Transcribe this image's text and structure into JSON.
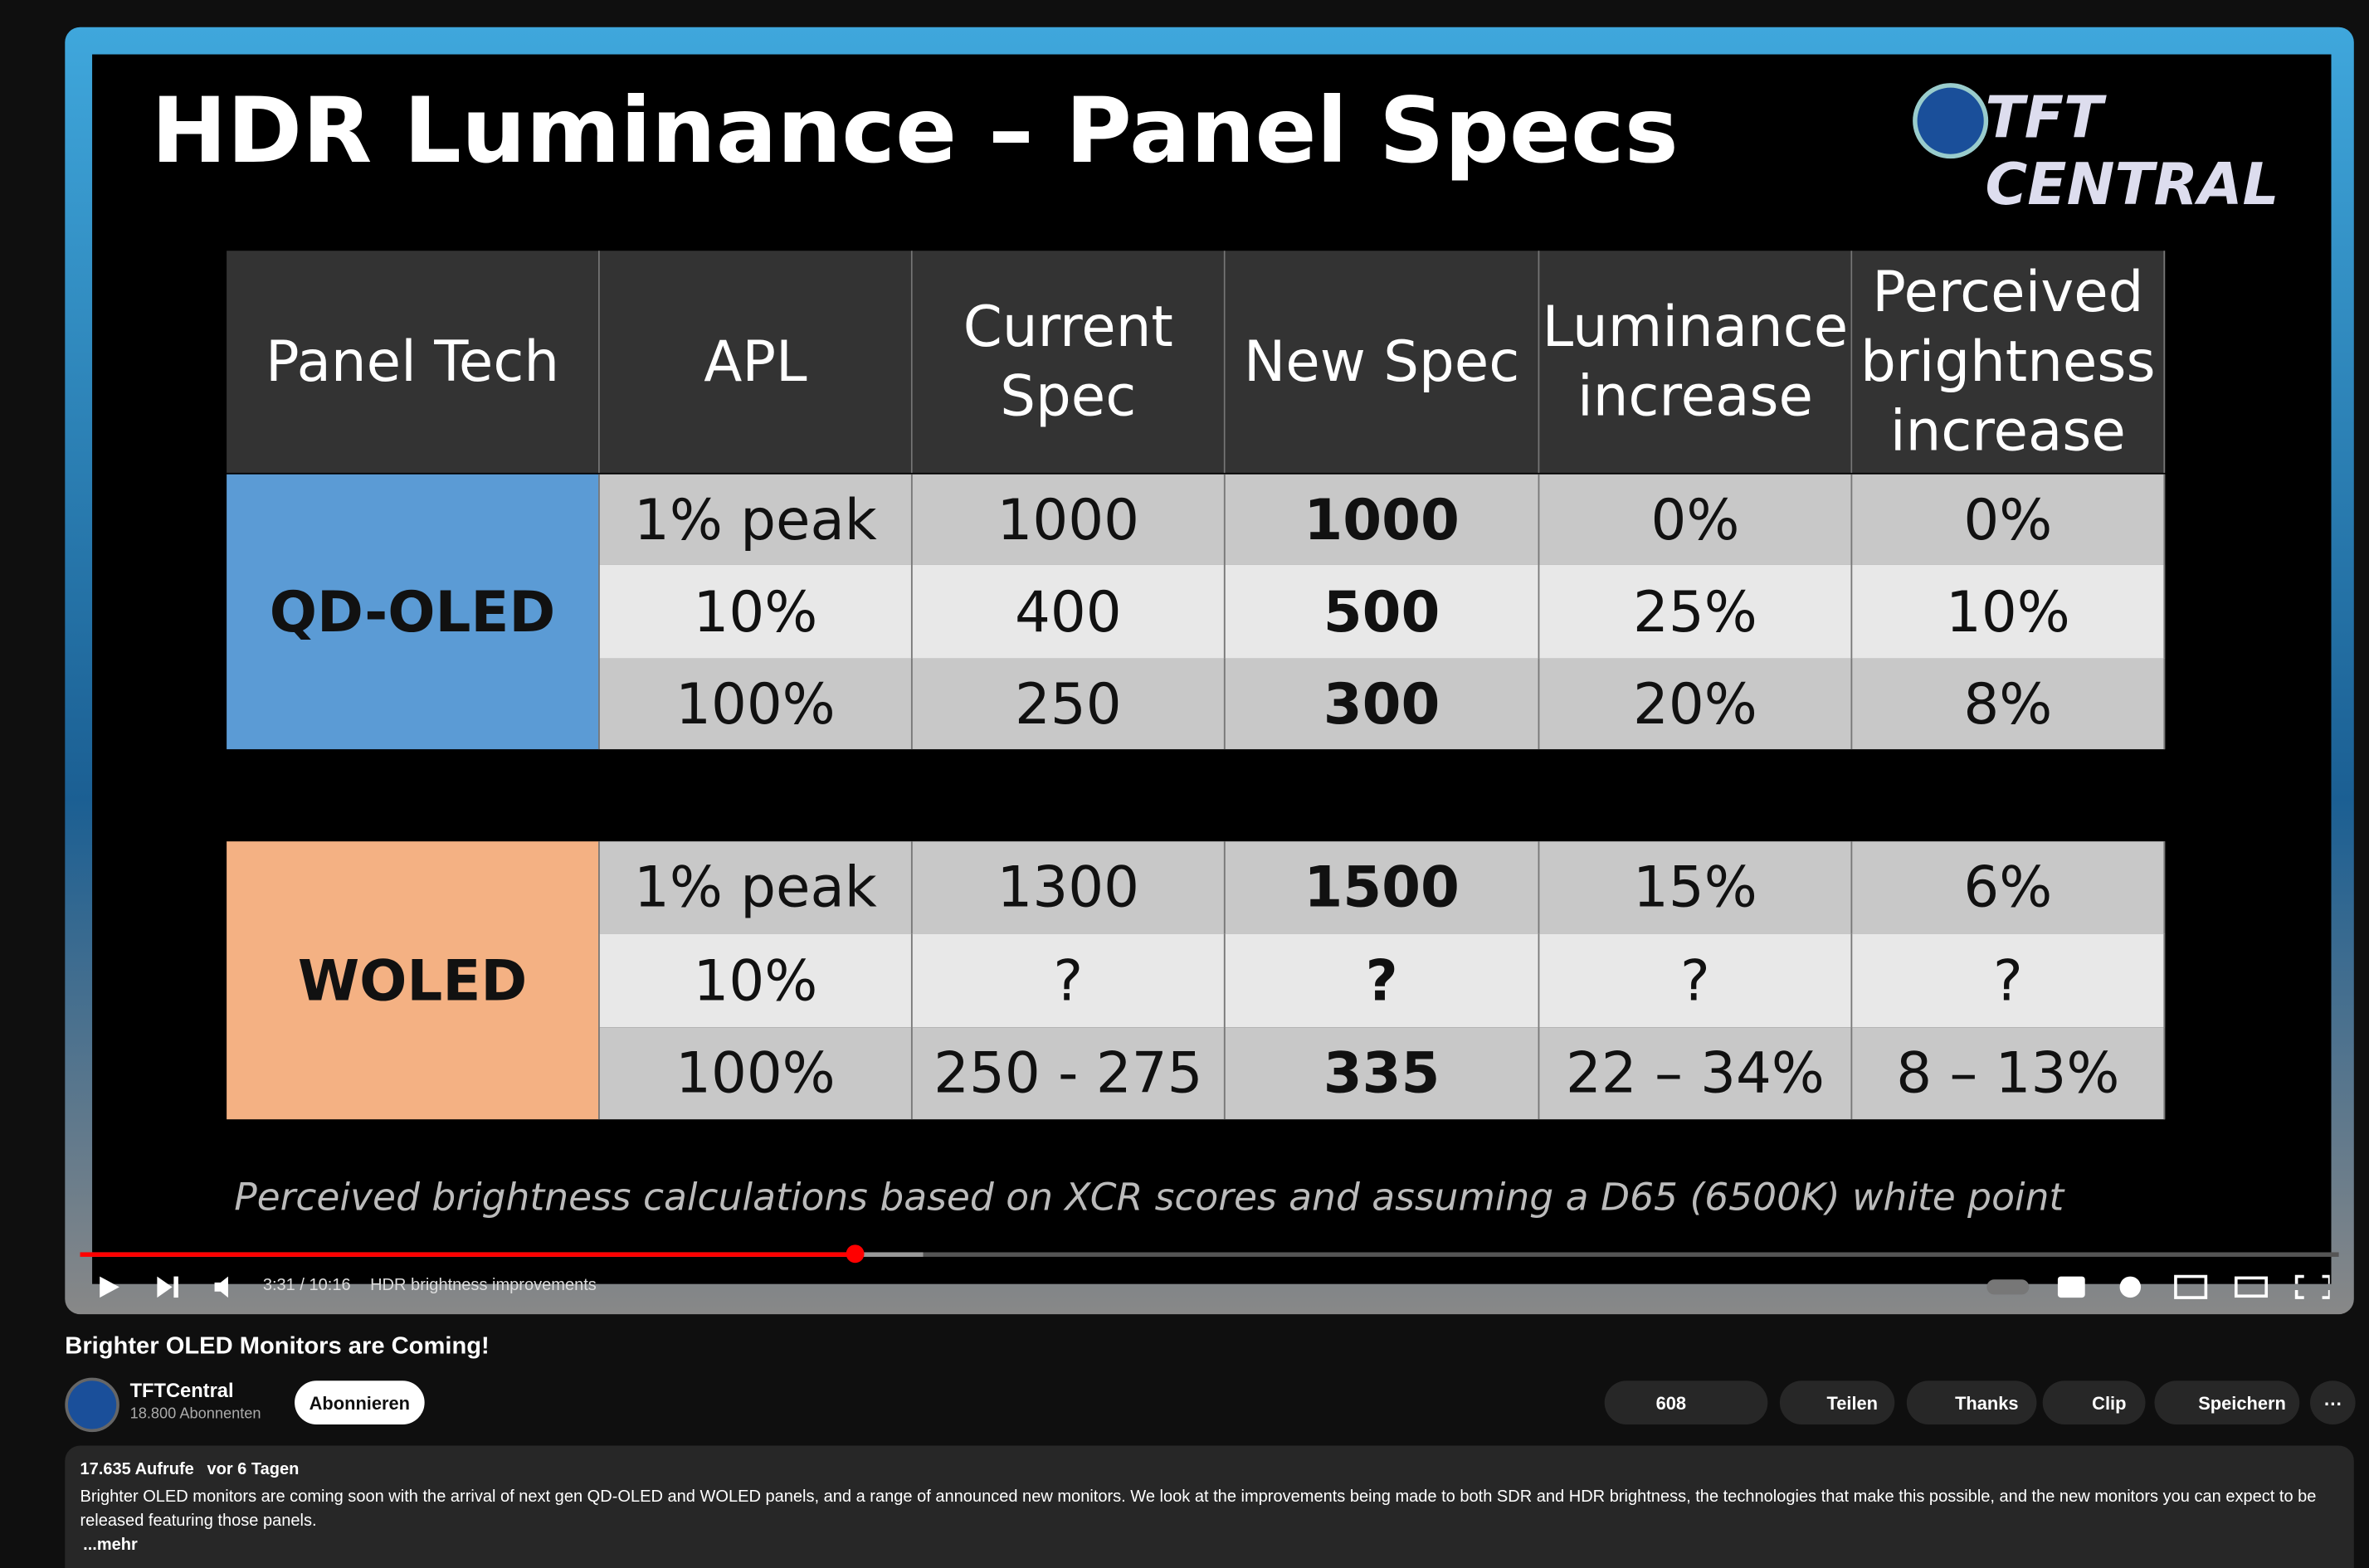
{
  "slide": {
    "title": "HDR Luminance – Panel Specs",
    "logo": "TFT CENTRAL",
    "table": {
      "headers": [
        "Panel Tech",
        "APL",
        "Current Spec",
        "New Spec",
        "Luminance increase",
        "Perceived brightness increase"
      ],
      "groups": [
        {
          "panel": "QD-OLED",
          "rows": [
            [
              "1% peak",
              "1000",
              "1000",
              "0%",
              "0%"
            ],
            [
              "10%",
              "400",
              "500",
              "25%",
              "10%"
            ],
            [
              "100%",
              "250",
              "300",
              "20%",
              "8%"
            ]
          ]
        },
        {
          "panel": "WOLED",
          "rows": [
            [
              "1% peak",
              "1300",
              "1500",
              "15%",
              "6%"
            ],
            [
              "10%",
              "?",
              "?",
              "?",
              "?"
            ],
            [
              "100%",
              "250 - 275",
              "335",
              "22 – 34%",
              "8 – 13%"
            ]
          ]
        }
      ]
    },
    "footnote": "Perceived brightness calculations based on XCR scores and assuming a D65 (6500K) white point"
  },
  "player": {
    "time": "3:31 / 10:16",
    "chapter": "HDR brightness improvements"
  },
  "video": {
    "title": "Brighter OLED Monitors are Coming!",
    "channel": "TFTCentral",
    "subscribers": "18.800 Abonnenten",
    "subscribe": "Abonnieren",
    "likes": "608",
    "actions": [
      "Teilen",
      "Thanks",
      "Clip",
      "Speichern"
    ],
    "views": "17.635 Aufrufe",
    "date": "vor 6 Tagen",
    "description": "Brighter OLED monitors are coming soon with the arrival of next gen QD-OLED and WOLED panels, and a range of announced new monitors. We look at the improvements being made to both SDR and HDR brightness, the technologies that make this possible, and the new monitors you can expect to be released featuring those panels.",
    "more": "...mehr"
  }
}
